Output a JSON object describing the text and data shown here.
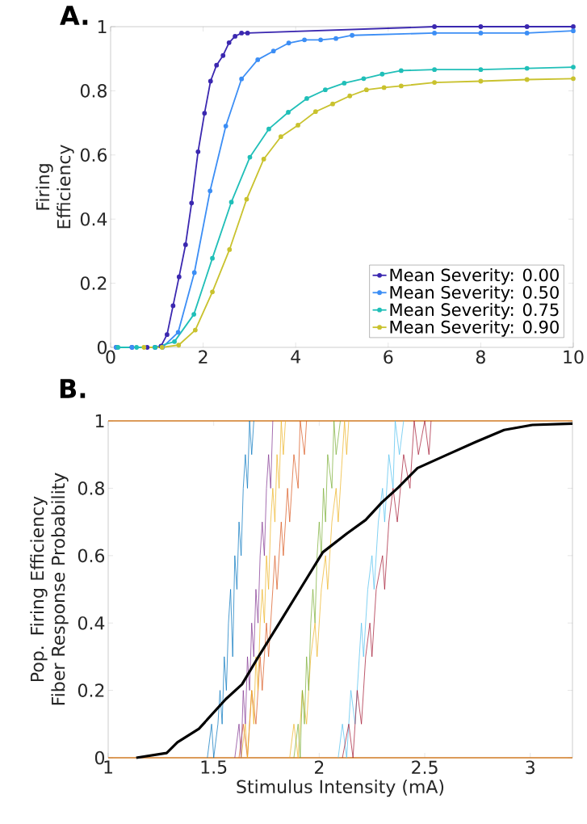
{
  "chart_data": [
    {
      "type": "line",
      "title": "A.",
      "ylabel": "Firing Efficiency",
      "xlim": [
        0,
        10
      ],
      "ylim": [
        0,
        1
      ],
      "xticks": [
        0,
        2,
        4,
        6,
        8,
        10
      ],
      "yticks": [
        0,
        0.2,
        0.4,
        0.6,
        0.8,
        1
      ],
      "marker": "circle",
      "legend": "bottom right",
      "series": [
        {
          "name": "Mean Severity: 0.00",
          "color": "#3b28b0",
          "x": [
            0.12,
            0.46,
            0.79,
            0.96,
            1.09,
            1.22,
            1.35,
            1.48,
            1.62,
            1.75,
            1.89,
            2.03,
            2.16,
            2.29,
            2.43,
            2.56,
            2.69,
            2.83,
            2.96,
            7,
            8,
            9,
            10
          ],
          "values": [
            0,
            0,
            0,
            0,
            0.004,
            0.04,
            0.13,
            0.22,
            0.32,
            0.45,
            0.61,
            0.73,
            0.83,
            0.88,
            0.91,
            0.95,
            0.97,
            0.98,
            0.98,
            1,
            1,
            1,
            1
          ]
        },
        {
          "name": "Mean Severity: 0.50",
          "color": "#3c8ef5",
          "x": [
            0.12,
            0.46,
            0.96,
            1.12,
            1.46,
            1.81,
            2.15,
            2.49,
            2.83,
            3.18,
            3.52,
            3.85,
            4.19,
            4.54,
            4.87,
            5.22,
            7,
            8,
            9,
            10
          ],
          "values": [
            0,
            0,
            0,
            0,
            0.047,
            0.233,
            0.488,
            0.69,
            0.837,
            0.897,
            0.924,
            0.949,
            0.959,
            0.959,
            0.963,
            0.973,
            0.98,
            0.98,
            0.98,
            0.987
          ]
        },
        {
          "name": "Mean Severity: 0.75",
          "color": "#20bfb8",
          "x": [
            0.16,
            0.56,
            0.96,
            1.38,
            1.8,
            2.2,
            2.61,
            3.01,
            3.42,
            3.84,
            4.24,
            4.64,
            5.05,
            5.47,
            5.87,
            6.28,
            7,
            8,
            9,
            10
          ],
          "values": [
            0,
            0,
            0,
            0.018,
            0.103,
            0.278,
            0.453,
            0.593,
            0.681,
            0.733,
            0.776,
            0.803,
            0.824,
            0.838,
            0.852,
            0.863,
            0.866,
            0.866,
            0.87,
            0.874
          ]
        },
        {
          "name": "Mean Severity: 0.90",
          "color": "#c9c22e",
          "x": [
            0.72,
            1.11,
            1.47,
            1.83,
            2.2,
            2.57,
            2.94,
            3.31,
            3.68,
            4.05,
            4.43,
            4.8,
            5.17,
            5.53,
            5.91,
            6.28,
            7,
            8,
            9,
            10
          ],
          "values": [
            0,
            0,
            0.007,
            0.054,
            0.173,
            0.305,
            0.462,
            0.587,
            0.657,
            0.693,
            0.735,
            0.759,
            0.784,
            0.803,
            0.81,
            0.815,
            0.826,
            0.83,
            0.835,
            0.838
          ]
        }
      ]
    },
    {
      "type": "line",
      "title": "B.",
      "xlabel": "Stimulus Intensity (mA)",
      "ylabel": "Pop. Firing Efficiency",
      "annotations": [
        "Fiber Response Probability"
      ],
      "xlim": [
        1,
        3.2
      ],
      "ylim": [
        0,
        1
      ],
      "xticks": [
        1,
        1.5,
        2,
        2.5,
        3
      ],
      "yticks": [
        0,
        0.2,
        0.4,
        0.6,
        0.8,
        1
      ],
      "marker": "none",
      "series": [
        {
          "color": "#d9822b",
          "x": [
            1,
            3.2
          ],
          "values": [
            1,
            1
          ]
        },
        {
          "color": "#d9822b",
          "x": [
            1,
            3.2
          ],
          "values": [
            0,
            0
          ]
        },
        {
          "color": "#0072bd",
          "x": [
            1.47,
            1.49,
            1.5,
            1.52,
            1.53,
            1.54,
            1.55,
            1.56,
            1.57,
            1.58,
            1.59,
            1.6,
            1.61,
            1.62,
            1.63,
            1.64,
            1.65,
            1.66,
            1.67,
            1.68,
            1.69
          ],
          "values": [
            0,
            0.1,
            0,
            0.1,
            0.2,
            0.1,
            0.3,
            0.2,
            0.4,
            0.5,
            0.3,
            0.6,
            0.5,
            0.7,
            0.6,
            0.8,
            0.9,
            0.8,
            1,
            0.9,
            1
          ]
        },
        {
          "color": "#d95319",
          "x": [
            1.62,
            1.64,
            1.66,
            1.68,
            1.7,
            1.72,
            1.73,
            1.75,
            1.76,
            1.78,
            1.79,
            1.8,
            1.82,
            1.83,
            1.85,
            1.86,
            1.88,
            1.9,
            1.91,
            1.93,
            1.94
          ],
          "values": [
            0,
            0.1,
            0,
            0.2,
            0.1,
            0.3,
            0.2,
            0.4,
            0.3,
            0.5,
            0.6,
            0.5,
            0.7,
            0.6,
            0.8,
            0.7,
            0.9,
            0.8,
            1,
            0.9,
            1
          ]
        },
        {
          "color": "#7e2f8e",
          "x": [
            1.6,
            1.62,
            1.63,
            1.64,
            1.65,
            1.66,
            1.67,
            1.68,
            1.69,
            1.7,
            1.71,
            1.72,
            1.73,
            1.74,
            1.75,
            1.76,
            1.77,
            1.78
          ],
          "values": [
            0,
            0.1,
            0,
            0.2,
            0.1,
            0.3,
            0.2,
            0.4,
            0.3,
            0.5,
            0.4,
            0.6,
            0.7,
            0.6,
            0.8,
            0.9,
            0.8,
            1
          ]
        },
        {
          "color": "#edb120",
          "x": [
            1.63,
            1.65,
            1.66,
            1.68,
            1.69,
            1.7,
            1.71,
            1.72,
            1.73,
            1.74,
            1.75,
            1.76,
            1.77,
            1.78,
            1.79,
            1.8,
            1.81,
            1.82,
            1.83,
            1.84
          ],
          "values": [
            0,
            0.1,
            0,
            0.2,
            0.1,
            0.3,
            0.2,
            0.4,
            0.5,
            0.4,
            0.6,
            0.5,
            0.7,
            0.8,
            0.7,
            0.9,
            0.8,
            1,
            0.9,
            1
          ]
        },
        {
          "color": "#edb120",
          "x": [
            1.86,
            1.88,
            1.9,
            1.92,
            1.94,
            1.96,
            1.98,
            1.99,
            2.01,
            2.03,
            2.04,
            2.06,
            2.08,
            2.09,
            2.11,
            2.12,
            2.13,
            2.14
          ],
          "values": [
            0,
            0.1,
            0,
            0.2,
            0.1,
            0.3,
            0.4,
            0.3,
            0.5,
            0.6,
            0.5,
            0.7,
            0.8,
            0.7,
            0.9,
            1,
            0.9,
            1
          ]
        },
        {
          "color": "#77ac30",
          "x": [
            1.88,
            1.9,
            1.91,
            1.92,
            1.93,
            1.94,
            1.95,
            1.96,
            1.97,
            1.98,
            1.99,
            2,
            2.01,
            2.02,
            2.03,
            2.04,
            2.06,
            2.07,
            2.08,
            2.1
          ],
          "values": [
            0,
            0.1,
            0,
            0.2,
            0.1,
            0.3,
            0.2,
            0.4,
            0.5,
            0.4,
            0.6,
            0.7,
            0.6,
            0.8,
            0.7,
            0.9,
            0.8,
            1,
            0.9,
            1
          ]
        },
        {
          "color": "#4dbeee",
          "x": [
            2.09,
            2.11,
            2.13,
            2.15,
            2.17,
            2.19,
            2.2,
            2.21,
            2.23,
            2.25,
            2.26,
            2.28,
            2.3,
            2.31,
            2.33,
            2.35,
            2.36,
            2.38,
            2.4
          ],
          "values": [
            0,
            0.1,
            0,
            0.2,
            0.1,
            0.3,
            0.4,
            0.3,
            0.5,
            0.6,
            0.5,
            0.7,
            0.8,
            0.7,
            0.9,
            0.8,
            1,
            0.9,
            1
          ]
        },
        {
          "color": "#a2142f",
          "x": [
            2.11,
            2.14,
            2.16,
            2.18,
            2.2,
            2.22,
            2.24,
            2.25,
            2.27,
            2.3,
            2.31,
            2.33,
            2.35,
            2.37,
            2.4,
            2.43,
            2.45,
            2.47,
            2.5,
            2.52,
            2.53
          ],
          "values": [
            0,
            0.1,
            0,
            0.2,
            0.1,
            0.3,
            0.4,
            0.3,
            0.5,
            0.6,
            0.5,
            0.7,
            0.8,
            0.7,
            0.9,
            0.8,
            1,
            0.9,
            1,
            0.9,
            1
          ]
        },
        {
          "color": "#000000",
          "x": [
            1.133,
            1.277,
            1.328,
            1.43,
            1.557,
            1.634,
            1.71,
            1.813,
            1.915,
            2.017,
            2.132,
            2.22,
            2.297,
            2.374,
            2.466,
            2.604,
            2.74,
            2.876,
            3.01,
            3.2
          ],
          "values": [
            0,
            0.014,
            0.046,
            0.086,
            0.174,
            0.218,
            0.298,
            0.402,
            0.506,
            0.61,
            0.666,
            0.706,
            0.758,
            0.802,
            0.86,
            0.899,
            0.937,
            0.973,
            0.988,
            0.992
          ]
        }
      ]
    }
  ]
}
